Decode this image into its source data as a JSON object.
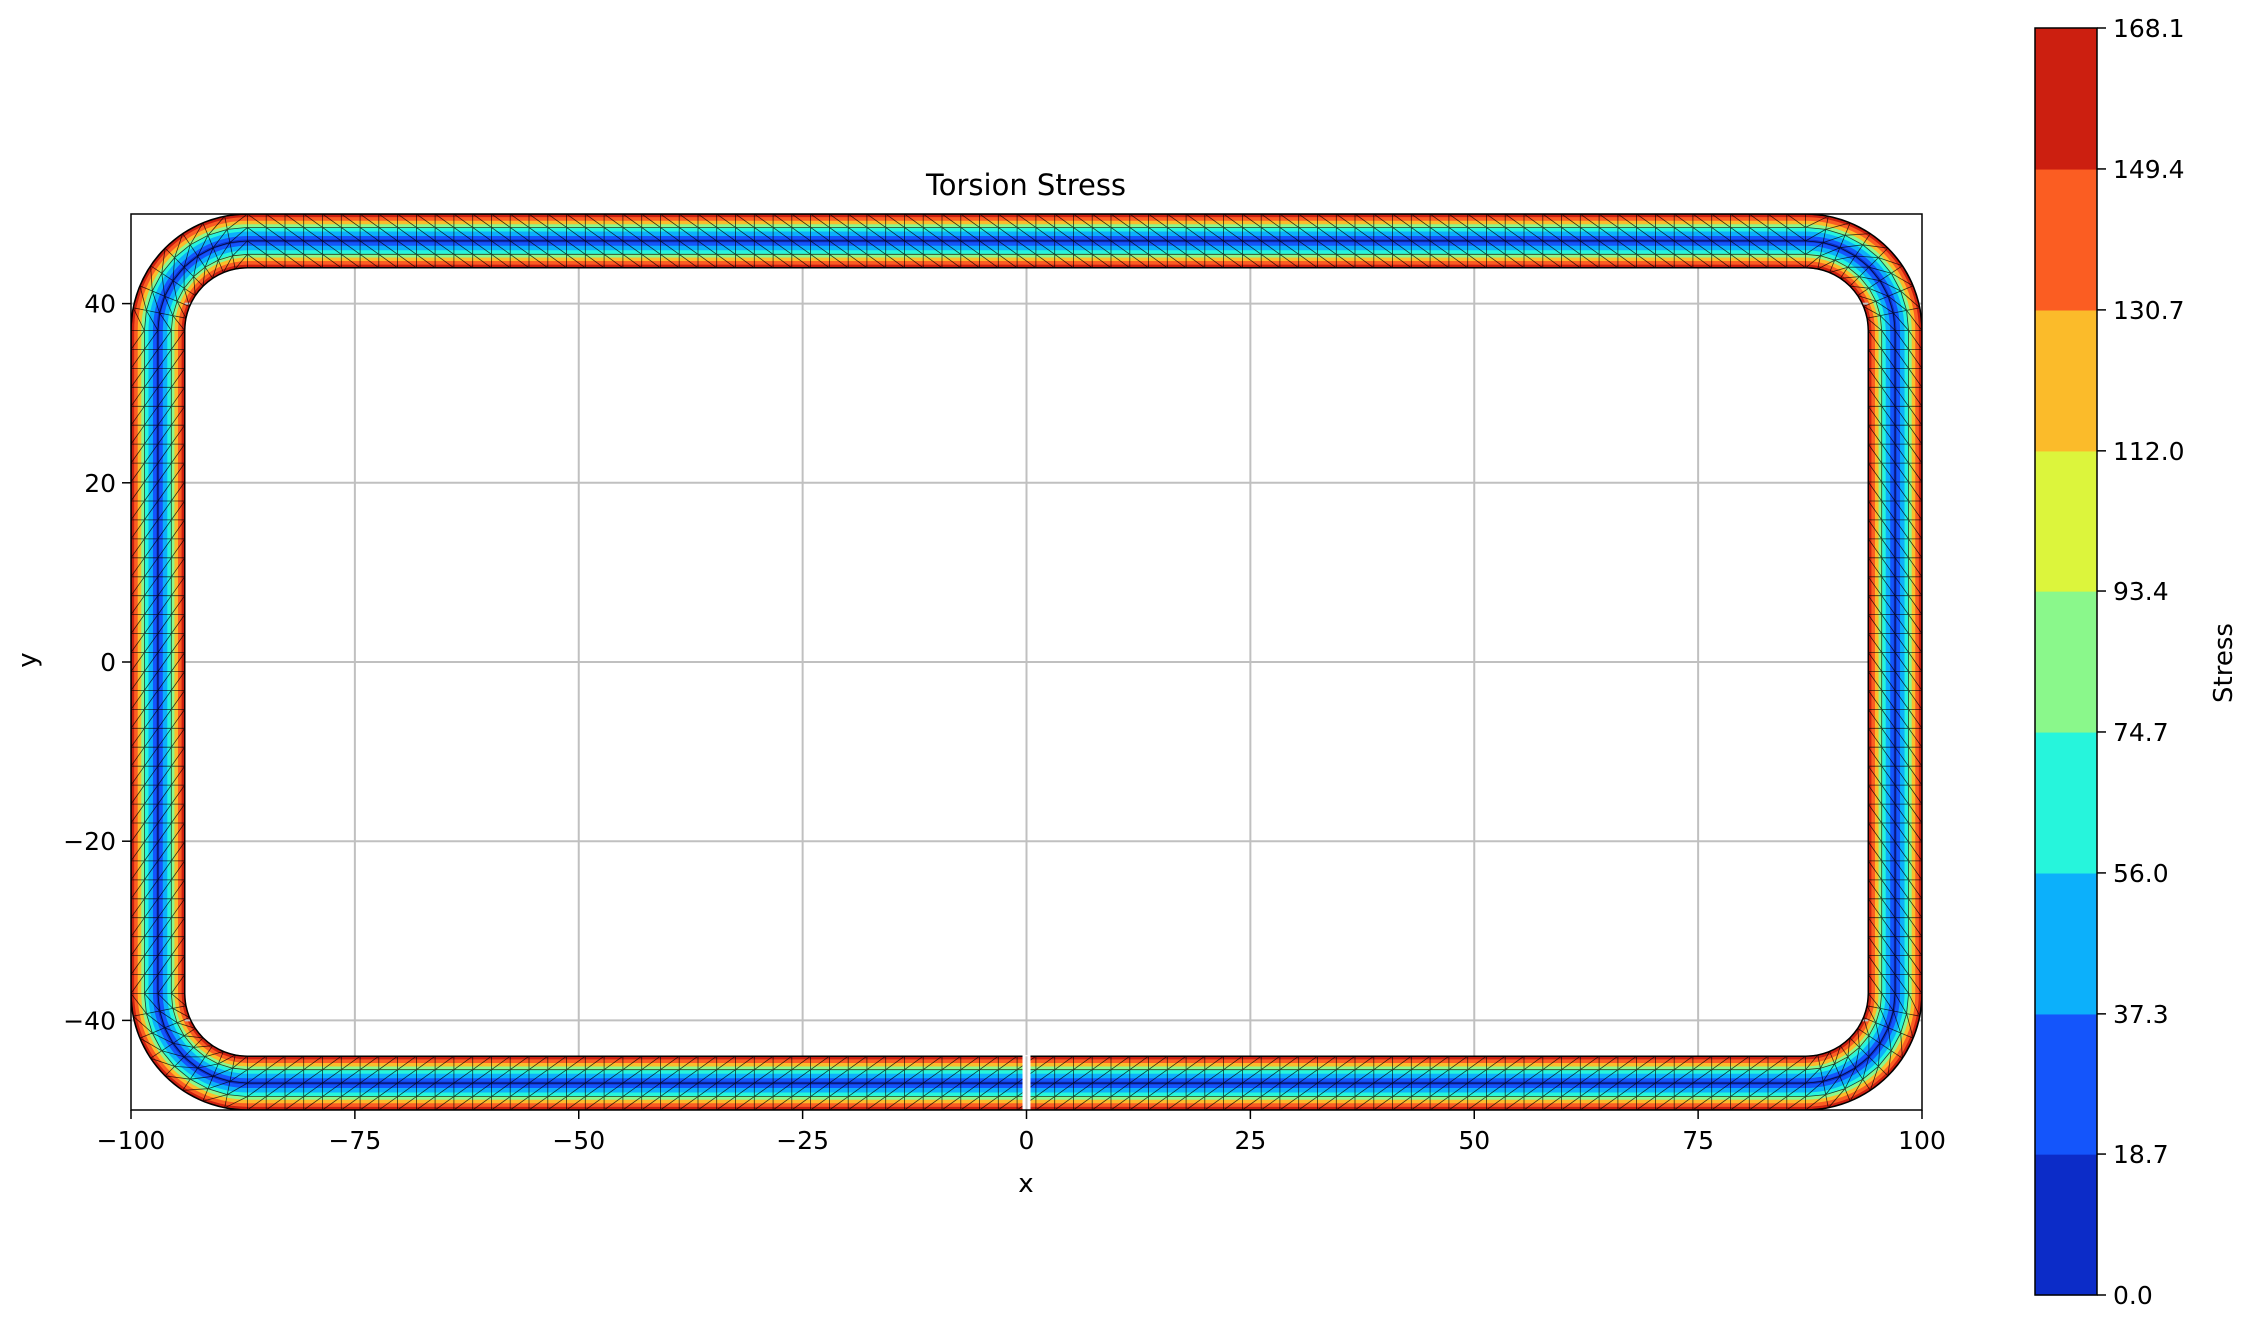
{
  "chart_data": {
    "type": "heatmap",
    "title": "Torsion Stress",
    "xlabel": "x",
    "ylabel": "y",
    "xlim": [
      -100,
      100
    ],
    "ylim": [
      -50,
      50
    ],
    "grid": true,
    "x_ticks": [
      -100,
      -75,
      -50,
      -25,
      0,
      25,
      50,
      75,
      100
    ],
    "x_tick_labels": [
      "−100",
      "−75",
      "−50",
      "−25",
      "0",
      "25",
      "50",
      "75",
      "100"
    ],
    "y_ticks": [
      -40,
      -20,
      0,
      20,
      40
    ],
    "y_tick_labels": [
      "−40",
      "−20",
      "0",
      "20",
      "40"
    ],
    "section": {
      "shape": "rounded rectangular tube with slit at bottom",
      "outer_half_width": 100,
      "outer_half_height": 50,
      "outer_corner_radius": 13,
      "wall_thickness": 6,
      "slit_x": 0
    },
    "colorbar": {
      "label": "Stress",
      "levels": [
        0.0,
        18.7,
        37.3,
        56.0,
        74.7,
        93.4,
        112.0,
        130.7,
        149.4,
        168.1
      ],
      "level_labels": [
        "0.0",
        "18.7",
        "37.3",
        "56.0",
        "74.7",
        "93.4",
        "112.0",
        "130.7",
        "149.4",
        "168.1"
      ],
      "colors": [
        "#0c2cc8",
        "#1455fb",
        "#0cb0fb",
        "#26f5dc",
        "#8af88b",
        "#dcf53c",
        "#fbbb2a",
        "#fb5d22",
        "#cc1f10"
      ]
    }
  }
}
